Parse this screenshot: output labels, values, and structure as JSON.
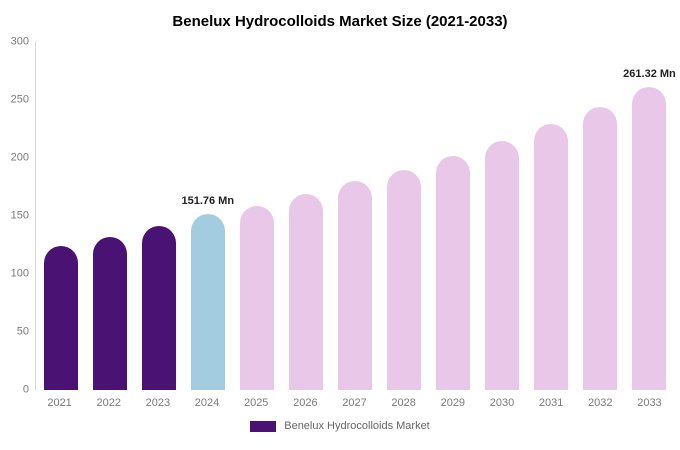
{
  "header": {
    "title": "Benelux Hydrocolloids Market Size (2021-2033)"
  },
  "legend": {
    "label": "Benelux Hydrocolloids Market",
    "swatch_color": "#4a1273"
  },
  "chart_data": {
    "type": "bar",
    "title": "Benelux Hydrocolloids Market Size (2021-2033)",
    "unit": "Mn",
    "categories": [
      "2021",
      "2022",
      "2023",
      "2024",
      "2025",
      "2026",
      "2027",
      "2028",
      "2029",
      "2030",
      "2031",
      "2032",
      "2033"
    ],
    "values": [
      124,
      132,
      141,
      151.76,
      159,
      169,
      180,
      190,
      202,
      215,
      229,
      244,
      261.32
    ],
    "bar_colors": [
      "#4a1273",
      "#4a1273",
      "#4a1273",
      "#a3cce1",
      "#e8c7e8",
      "#e8c7e8",
      "#e8c7e8",
      "#e8c7e8",
      "#e8c7e8",
      "#e8c7e8",
      "#e8c7e8",
      "#e8c7e8",
      "#e8c7e8"
    ],
    "ylim": [
      0,
      300
    ],
    "yticks": [
      0,
      50,
      100,
      150,
      200,
      250,
      300
    ],
    "grid": false,
    "legend_position": "bottom",
    "annotations": [
      {
        "index": 3,
        "category": "2024",
        "text": "151.76 Mn"
      },
      {
        "index": 12,
        "category": "2033",
        "text": "261.32 Mn"
      }
    ]
  }
}
